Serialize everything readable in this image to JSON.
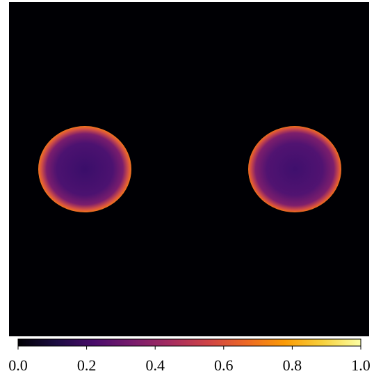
{
  "chart_data": {
    "type": "image",
    "colormap": "inferno",
    "clim": [
      0,
      1
    ],
    "cticks": [
      {
        "value": 0,
        "label": "0.0"
      },
      {
        "value": 0.2,
        "label": "0.2"
      },
      {
        "value": 0.4,
        "label": "0.4"
      },
      {
        "value": 0.6,
        "label": "0.6"
      },
      {
        "value": 0.8,
        "label": "0.8"
      },
      {
        "value": 1,
        "label": "1.0"
      }
    ]
  }
}
